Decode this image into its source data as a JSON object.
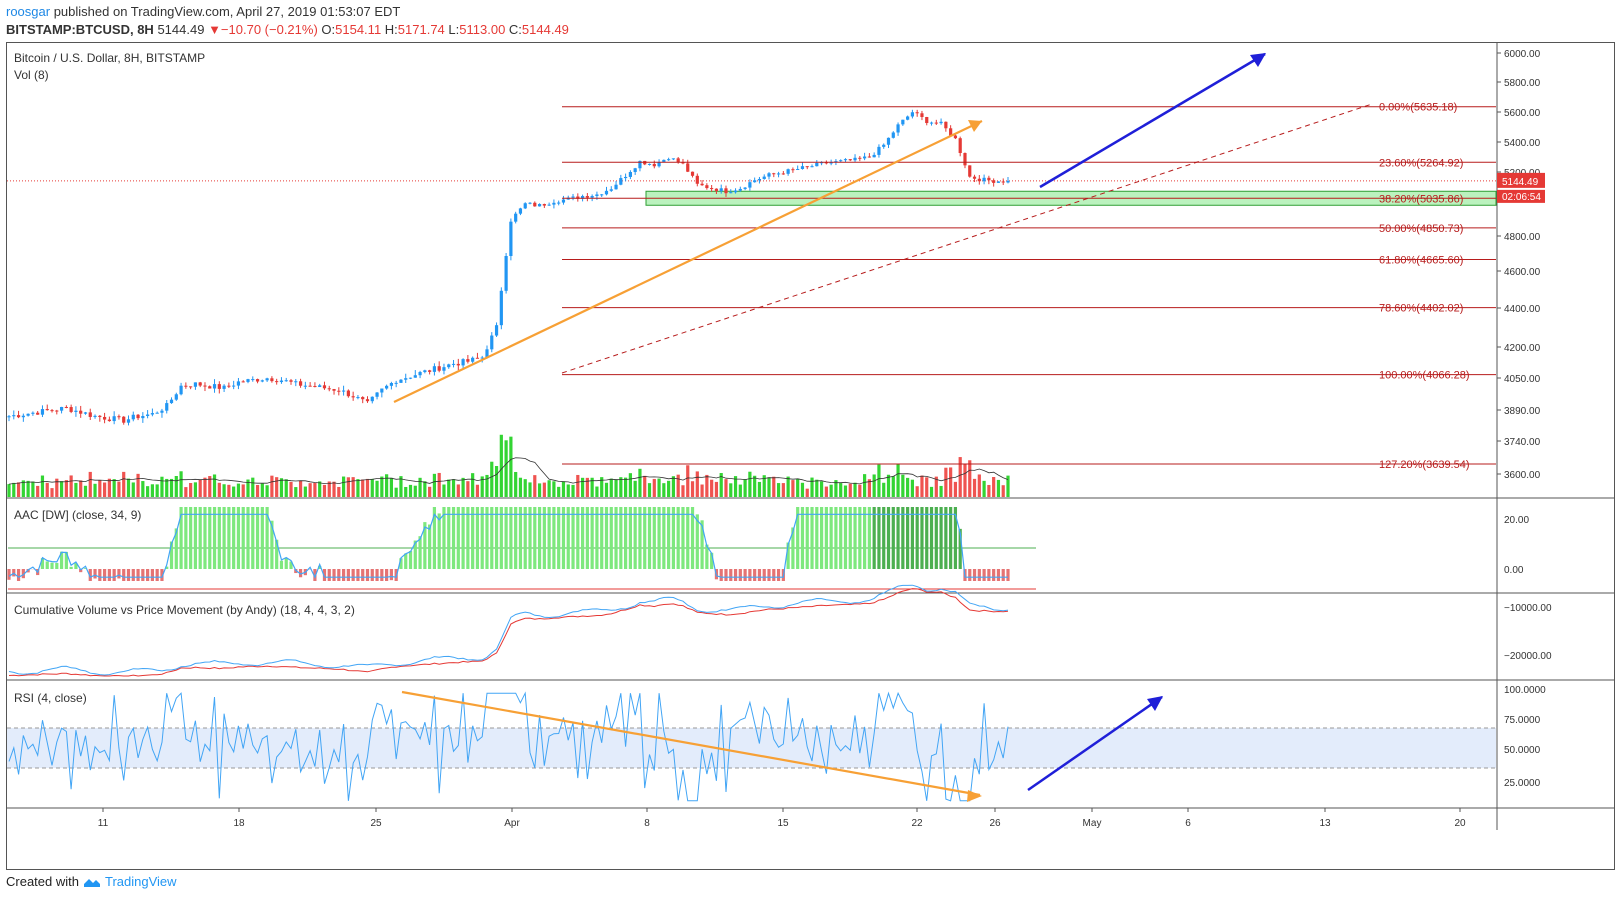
{
  "header": {
    "user": "roosgar",
    "published": "published on TradingView.com, April 27, 2019 01:53:07 EDT",
    "symbol": "BITSTAMP:BTCUSD, 8H",
    "last": "5144.49",
    "change": "▼−10.70 (−0.21%)",
    "o_label": "O:",
    "o_val": "5154.11",
    "h_label": "H:",
    "h_val": "5171.74",
    "l_label": "L:",
    "l_val": "5113.00",
    "c_label": "C:",
    "c_val": "5144.49"
  },
  "panels": {
    "main_title": "Bitcoin / U.S. Dollar, 8H, BITSTAMP",
    "vol_title": "Vol (8)",
    "aac_title": "AAC [DW] (close, 34, 9)",
    "cvpm_title": "Cumulative Volume vs Price Movement (by Andy) (18, 4, 4, 3, 2)",
    "rsi_title": "RSI (4, close)"
  },
  "price_axis": [
    "6000.00",
    "5800.00",
    "5600.00",
    "5400.00",
    "5200.00",
    "4800.00",
    "4600.00",
    "4400.00",
    "4200.00",
    "4050.00",
    "3890.00",
    "3740.00",
    "3600.00"
  ],
  "price_tags": {
    "last": "5144.49",
    "countdown": "02:06:54"
  },
  "aac_axis": [
    "20.00",
    "0.00"
  ],
  "cvpm_axis": [
    "−10000.00",
    "−20000.00"
  ],
  "rsi_axis": [
    "100.0000",
    "75.0000",
    "50.0000",
    "25.0000"
  ],
  "time_axis": [
    "11",
    "18",
    "25",
    "Apr",
    "8",
    "15",
    "22",
    "26",
    "May",
    "6",
    "13",
    "20"
  ],
  "fib_labels": [
    "0.00%(5635.18)",
    "23.60%(5264.92)",
    "38.20%(5035.86)",
    "50.00%(4850.73)",
    "61.80%(4665.60)",
    "78.60%(4402.02)",
    "100.00%(4066.28)",
    "127.20%(3639.54)"
  ],
  "footer": {
    "created": "Created with",
    "brand": "TradingView"
  },
  "colors": {
    "up": "#2196f3",
    "down": "#e53935",
    "fib": "#b71c1c",
    "orange": "#f7a035",
    "blue_arrow": "#1f1fd8",
    "zone": "#69e26e",
    "vol_up": "#33d433",
    "vol_down": "#ef5350"
  },
  "chart_data": {
    "type": "candlestick",
    "symbol": "BITSTAMP:BTCUSD",
    "interval": "8H",
    "close_path": [
      3860,
      3870,
      3880,
      3890,
      3900,
      3880,
      3860,
      3850,
      3840,
      3860,
      3870,
      3910,
      4010,
      4020,
      4010,
      4000,
      4030,
      4040,
      4050,
      4040,
      4020,
      4010,
      4000,
      3990,
      3960,
      3920,
      3990,
      4040,
      4060,
      4080,
      4100,
      4120,
      4130,
      4150,
      4300,
      4900,
      5000,
      4990,
      5020,
      5030,
      5050,
      5060,
      5100,
      5180,
      5270,
      5250,
      5300,
      5250,
      5120,
      5100,
      5080,
      5100,
      5150,
      5180,
      5200,
      5220,
      5240,
      5260,
      5270,
      5280,
      5300,
      5380,
      5510,
      5600,
      5540,
      5520,
      5420,
      5170,
      5150,
      5144
    ],
    "last_close": 5144.49,
    "fibonacci": {
      "high": 5635.18,
      "low": 4066.28,
      "levels": [
        [
          0.0,
          5635.18
        ],
        [
          23.6,
          5264.92
        ],
        [
          38.2,
          5035.86
        ],
        [
          50.0,
          4850.73
        ],
        [
          61.8,
          4665.6
        ],
        [
          78.6,
          4402.02
        ],
        [
          100.0,
          4066.28
        ],
        [
          127.2,
          3639.54
        ]
      ]
    },
    "volume_ma_period": 8,
    "rsi_period": 4
  }
}
